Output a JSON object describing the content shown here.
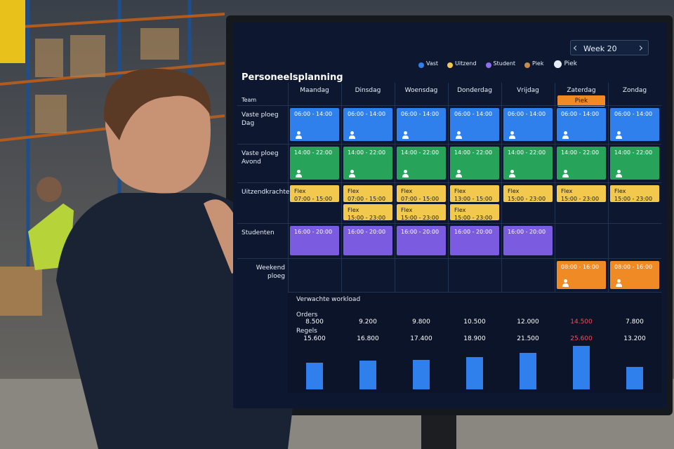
{
  "screen": {
    "title": "Personeelsplanning",
    "legend": [
      {
        "label": "Vast",
        "color": "#2f80ed"
      },
      {
        "label": "Uitzend",
        "color": "#f2c94c"
      },
      {
        "label": "Student",
        "color": "#8e6cf0"
      },
      {
        "label": "Piek",
        "color": "#c98a4a"
      }
    ],
    "peak_toggle": "Piek",
    "week": "Week 20",
    "team_header": "Team",
    "days": [
      {
        "name": "Maandag"
      },
      {
        "name": "Dinsdag"
      },
      {
        "name": "Woensdag"
      },
      {
        "name": "Donderdag"
      },
      {
        "name": "Vrijdag"
      },
      {
        "name": "Zaterdag",
        "badge": "Piek"
      },
      {
        "name": "Zondag"
      }
    ],
    "rows": [
      {
        "team": "Vaste ploeg Dag",
        "color": "#2f80ed",
        "text_color": "#ffffff",
        "icon": true,
        "cells": [
          [
            {
              "lines": [
                "06:00 - 14:00"
              ]
            }
          ],
          [
            {
              "lines": [
                "06:00 - 14:00"
              ]
            }
          ],
          [
            {
              "lines": [
                "06:00 - 14:00"
              ]
            }
          ],
          [
            {
              "lines": [
                "06:00 - 14:00"
              ]
            }
          ],
          [
            {
              "lines": [
                "06:00 - 14:00"
              ]
            }
          ],
          [
            {
              "lines": [
                "06:00 - 14:00"
              ]
            }
          ],
          [
            {
              "lines": [
                "06:00 - 14:00"
              ]
            }
          ]
        ]
      },
      {
        "team": "Vaste ploeg Avond",
        "color": "#27a35a",
        "text_color": "#ffffff",
        "icon": true,
        "cells": [
          [
            {
              "lines": [
                "14:00 - 22:00"
              ]
            }
          ],
          [
            {
              "lines": [
                "14:00 - 22:00"
              ]
            }
          ],
          [
            {
              "lines": [
                "14:00 - 22:00"
              ]
            }
          ],
          [
            {
              "lines": [
                "14:00 - 22:00"
              ]
            }
          ],
          [
            {
              "lines": [
                "14:00 - 22:00"
              ]
            }
          ],
          [
            {
              "lines": [
                "14:00 - 22:00"
              ]
            }
          ],
          [
            {
              "lines": [
                "14:00 - 22:00"
              ]
            }
          ]
        ]
      },
      {
        "team": "Uitzendkrachten",
        "color": "#f2c94c",
        "text_color": "#1d1d1d",
        "icon": false,
        "cells": [
          [
            {
              "lines": [
                "Flex",
                "07:00 - 15:00"
              ]
            }
          ],
          [
            {
              "lines": [
                "Flex",
                "07:00 - 15:00"
              ]
            },
            {
              "lines": [
                "Flex",
                "15:00 - 23:00"
              ]
            }
          ],
          [
            {
              "lines": [
                "Flex",
                "07:00 - 15:00"
              ]
            },
            {
              "lines": [
                "Flex",
                "15:00 - 23:00"
              ]
            }
          ],
          [
            {
              "lines": [
                "Flex",
                "13:00 - 15:00"
              ]
            },
            {
              "lines": [
                "Flex",
                "15:00 - 23:00"
              ]
            }
          ],
          [
            {
              "lines": [
                "Flex",
                "15:00 - 23:00"
              ]
            }
          ],
          [
            {
              "lines": [
                "Flex",
                "15:00 - 23:00"
              ]
            }
          ],
          [
            {
              "lines": [
                "Flex",
                "15:00 - 23:00"
              ]
            }
          ]
        ]
      },
      {
        "team": "Studenten",
        "color": "#7b5ce0",
        "text_color": "#ffffff",
        "icon": false,
        "cells": [
          [
            {
              "lines": [
                "16:00 - 20:00"
              ]
            }
          ],
          [
            {
              "lines": [
                "16:00 - 20:00"
              ]
            }
          ],
          [
            {
              "lines": [
                "16:00 - 20:00"
              ]
            }
          ],
          [
            {
              "lines": [
                "16:00 - 20:00"
              ]
            }
          ],
          [
            {
              "lines": [
                "16:00 - 20:00"
              ]
            }
          ],
          [],
          []
        ]
      },
      {
        "team": "Weekend ploeg",
        "color": "#f08a24",
        "text_color": "#ffffff",
        "icon": true,
        "cells": [
          [],
          [],
          [],
          [],
          [],
          [
            {
              "lines": [
                "08:00 - 16:00"
              ]
            }
          ],
          [
            {
              "lines": [
                "08:00 - 16:00"
              ]
            }
          ]
        ]
      }
    ],
    "workload": {
      "title": "Verwachte workload",
      "orders": {
        "label": "Orders",
        "values": [
          8500,
          9200,
          9800,
          10500,
          12000,
          14500,
          7800
        ],
        "value_labels": [
          "8.500",
          "9.200",
          "9.800",
          "10.500",
          "12.000",
          "14.500",
          "7.800"
        ]
      },
      "regels": {
        "label": "Regels",
        "color": "#2f80ed",
        "values": [
          15600,
          16800,
          17400,
          18900,
          21500,
          25600,
          13200
        ],
        "value_labels": [
          "15.600",
          "16.800",
          "17.400",
          "18.900",
          "21.500",
          "25.600",
          "13.200"
        ]
      },
      "label_colors": [
        "#ffffff",
        "#ffffff",
        "#ffffff",
        "#ffffff",
        "#ffffff",
        "#ff4d4d",
        "#ffffff"
      ]
    }
  }
}
